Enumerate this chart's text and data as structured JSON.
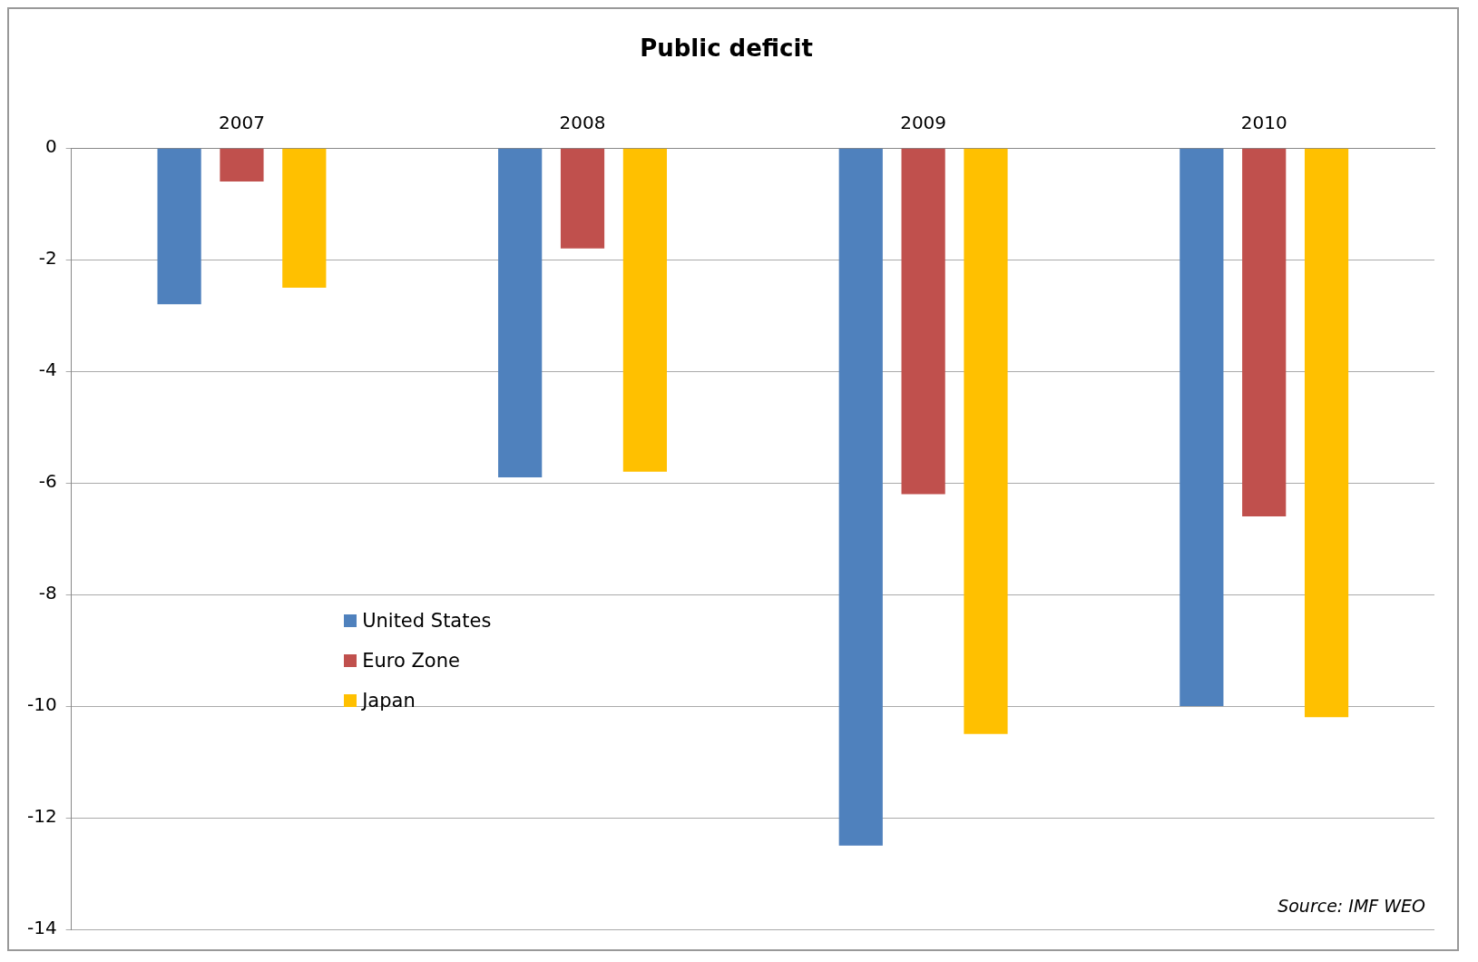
{
  "chart_data": {
    "type": "bar",
    "title": "Public deficit",
    "categories": [
      "2007",
      "2008",
      "2009",
      "2010"
    ],
    "series": [
      {
        "name": "United States",
        "color": "#4f81bd",
        "values": [
          -2.8,
          -5.9,
          -12.5,
          -10
        ]
      },
      {
        "name": "Euro Zone",
        "color": "#c0504d",
        "values": [
          -0.6,
          -1.8,
          -6.2,
          -6.6
        ]
      },
      {
        "name": "Japan",
        "color": "#ffc000",
        "values": [
          -2.5,
          -5.8,
          -10.5,
          -10.2
        ]
      }
    ],
    "ylim": [
      -14,
      0
    ],
    "yticks": [
      -14,
      -12,
      -10,
      -8,
      -6,
      -4,
      -2,
      0
    ],
    "grid": "y",
    "legend": "center left",
    "annotations": [
      "Source: IMF WEO"
    ]
  }
}
